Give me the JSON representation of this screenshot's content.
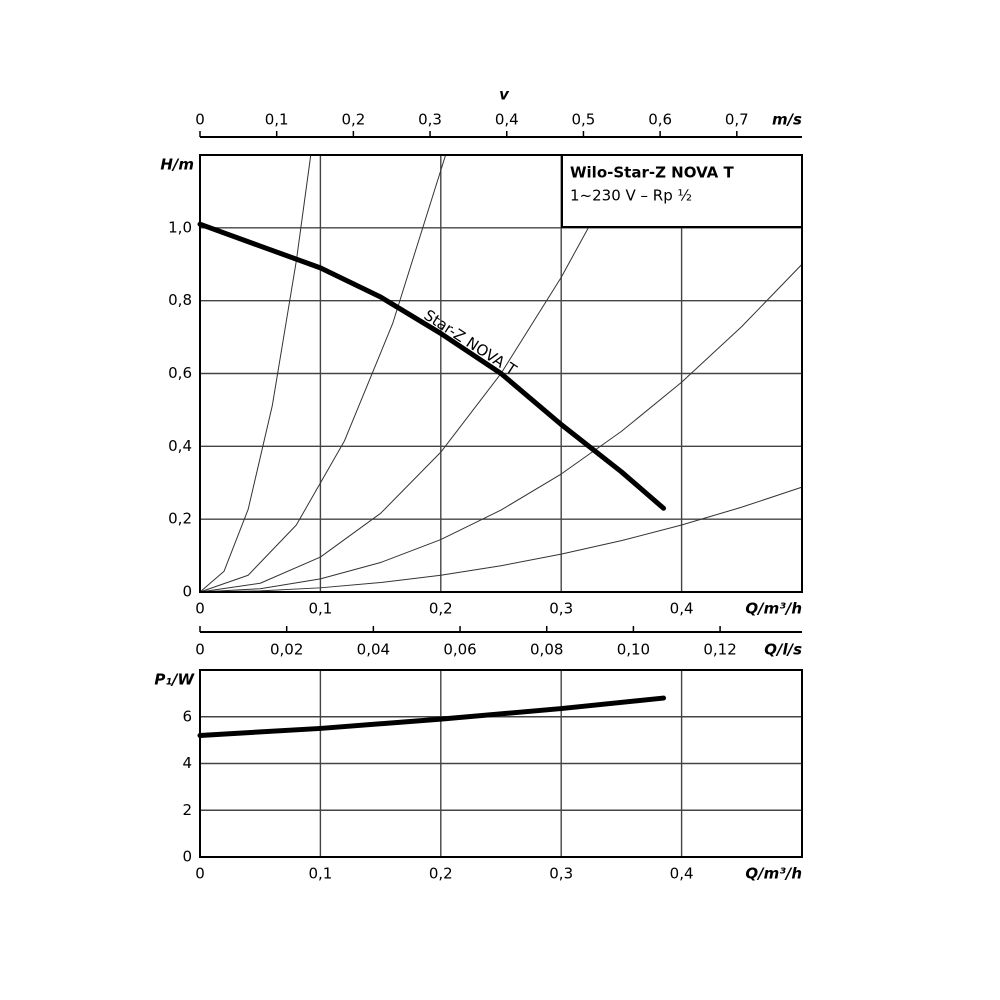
{
  "chart_data": [
    {
      "type": "line",
      "title": "Wilo-Star-Z NOVA T",
      "subtitle": "1~230 V – Rp ½",
      "annotation": "Star-Z NOVA T",
      "xlabel": "Q/m³/h",
      "ylabel": "H/m",
      "xlim": [
        0,
        0.5
      ],
      "ylim": [
        0,
        1.2
      ],
      "xticks": [
        0,
        {
          "value": 0.1,
          "label": "0,1"
        },
        {
          "value": 0.2,
          "label": "0,2"
        },
        {
          "value": 0.3,
          "label": "0,3"
        },
        {
          "value": 0.4,
          "label": "0,4"
        }
      ],
      "yticks": [
        0,
        {
          "value": 0.2,
          "label": "0,2"
        },
        {
          "value": 0.4,
          "label": "0,4"
        },
        {
          "value": 0.6,
          "label": "0,6"
        },
        {
          "value": 0.8,
          "label": "0,8"
        },
        {
          "value": 1.0,
          "label": "1,0"
        }
      ],
      "grid": true,
      "velocity_axis": {
        "label": "v",
        "unit": "m/s",
        "xlim": [
          0,
          0.785
        ],
        "xticks": [
          0,
          {
            "value": 0.1,
            "label": "0,1"
          },
          {
            "value": 0.2,
            "label": "0,2"
          },
          {
            "value": 0.3,
            "label": "0,3"
          },
          {
            "value": 0.4,
            "label": "0,4"
          },
          {
            "value": 0.5,
            "label": "0,5"
          },
          {
            "value": 0.6,
            "label": "0,6"
          },
          {
            "value": 0.7,
            "label": "0,7"
          }
        ]
      },
      "flow_ls_axis": {
        "label": "Q/l/s",
        "xlim": [
          0,
          0.1389
        ],
        "xticks": [
          0,
          {
            "value": 0.02,
            "label": "0,02"
          },
          {
            "value": 0.04,
            "label": "0,04"
          },
          {
            "value": 0.06,
            "label": "0,06"
          },
          {
            "value": 0.08,
            "label": "0,08"
          },
          {
            "value": 0.1,
            "label": "0,10"
          },
          {
            "value": 0.12,
            "label": "0,12"
          }
        ]
      },
      "series": [
        {
          "color": "#333333",
          "line_width": 1,
          "x": [
            0,
            0.02,
            0.04,
            0.06,
            0.08,
            0.092
          ],
          "values": [
            0,
            0.057,
            0.227,
            0.511,
            0.909,
            1.2
          ]
        },
        {
          "color": "#333333",
          "line_width": 1,
          "x": [
            0,
            0.04,
            0.08,
            0.12,
            0.16,
            0.204
          ],
          "values": [
            0,
            0.046,
            0.184,
            0.415,
            0.737,
            1.2
          ]
        },
        {
          "color": "#333333",
          "line_width": 1,
          "x": [
            0,
            0.05,
            0.1,
            0.15,
            0.2,
            0.25,
            0.3,
            0.3225
          ],
          "values": [
            0,
            0.024,
            0.096,
            0.216,
            0.384,
            0.6,
            0.864,
            1.0
          ]
        },
        {
          "color": "#333333",
          "line_width": 1,
          "x": [
            0,
            0.05,
            0.1,
            0.15,
            0.2,
            0.25,
            0.3,
            0.35,
            0.4,
            0.45,
            0.5
          ],
          "values": [
            0,
            0.009,
            0.036,
            0.081,
            0.144,
            0.225,
            0.324,
            0.441,
            0.576,
            0.729,
            0.9
          ]
        },
        {
          "color": "#333333",
          "line_width": 1,
          "x": [
            0,
            0.05,
            0.1,
            0.15,
            0.2,
            0.25,
            0.3,
            0.35,
            0.4,
            0.45,
            0.5
          ],
          "values": [
            0,
            0.003,
            0.0115,
            0.026,
            0.046,
            0.072,
            0.104,
            0.141,
            0.184,
            0.233,
            0.288
          ]
        },
        {
          "color": "#000000",
          "line_width": 5,
          "x": [
            0,
            0.05,
            0.1,
            0.15,
            0.2,
            0.25,
            0.3,
            0.35,
            0.385
          ],
          "values": [
            1.01,
            0.95,
            0.89,
            0.81,
            0.71,
            0.6,
            0.46,
            0.33,
            0.23
          ]
        }
      ]
    },
    {
      "type": "line",
      "xlabel": "Q/m³/h",
      "ylabel": "P₁/W",
      "xlim": [
        0,
        0.5
      ],
      "ylim": [
        0,
        8
      ],
      "xticks": [
        0,
        {
          "value": 0.1,
          "label": "0,1"
        },
        {
          "value": 0.2,
          "label": "0,2"
        },
        {
          "value": 0.3,
          "label": "0,3"
        },
        {
          "value": 0.4,
          "label": "0,4"
        }
      ],
      "yticks": [
        0,
        2,
        4,
        6
      ],
      "grid": true,
      "series": [
        {
          "color": "#000000",
          "line_width": 5,
          "x": [
            0,
            0.1,
            0.2,
            0.3,
            0.385
          ],
          "values": [
            5.2,
            5.5,
            5.9,
            6.35,
            6.8
          ]
        }
      ]
    }
  ]
}
